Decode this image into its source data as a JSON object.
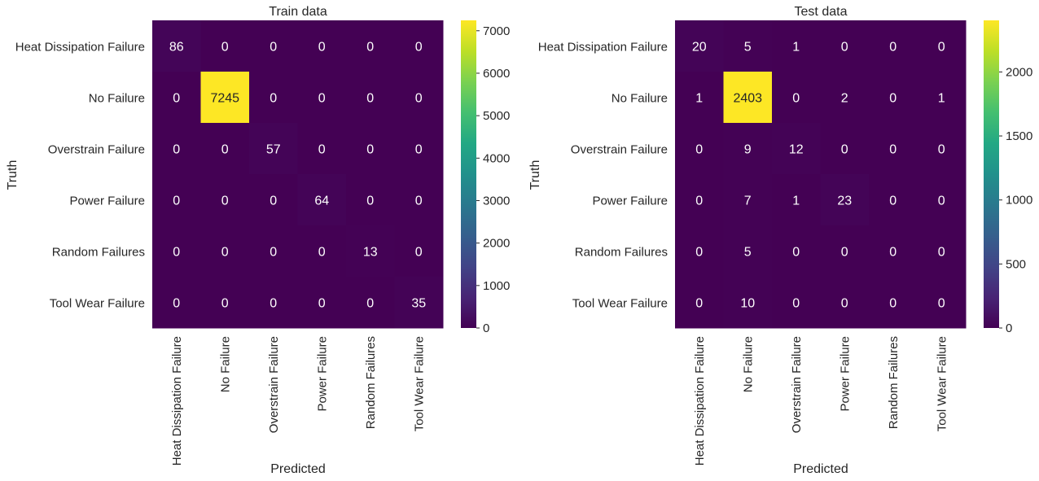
{
  "chart_data": [
    {
      "type": "heatmap",
      "title": "Train data",
      "xlabel": "Predicted",
      "ylabel": "Truth",
      "x_categories": [
        "Heat Dissipation Failure",
        "No Failure",
        "Overstrain Failure",
        "Power Failure",
        "Random Failures",
        "Tool Wear Failure"
      ],
      "y_categories": [
        "Heat Dissipation Failure",
        "No Failure",
        "Overstrain Failure",
        "Power Failure",
        "Random Failures",
        "Tool Wear Failure"
      ],
      "values": [
        [
          86,
          0,
          0,
          0,
          0,
          0
        ],
        [
          0,
          7245,
          0,
          0,
          0,
          0
        ],
        [
          0,
          0,
          57,
          0,
          0,
          0
        ],
        [
          0,
          0,
          0,
          64,
          0,
          0
        ],
        [
          0,
          0,
          0,
          0,
          13,
          0
        ],
        [
          0,
          0,
          0,
          0,
          0,
          35
        ]
      ],
      "colormap": "viridis",
      "vmin": 0,
      "vmax": 7245,
      "colorbar_ticks": [
        0,
        1000,
        2000,
        3000,
        4000,
        5000,
        6000,
        7000
      ]
    },
    {
      "type": "heatmap",
      "title": "Test data",
      "xlabel": "Predicted",
      "ylabel": "Truth",
      "x_categories": [
        "Heat Dissipation Failure",
        "No Failure",
        "Overstrain Failure",
        "Power Failure",
        "Random Failures",
        "Tool Wear Failure"
      ],
      "y_categories": [
        "Heat Dissipation Failure",
        "No Failure",
        "Overstrain Failure",
        "Power Failure",
        "Random Failures",
        "Tool Wear Failure"
      ],
      "values": [
        [
          20,
          5,
          1,
          0,
          0,
          0
        ],
        [
          1,
          2403,
          0,
          2,
          0,
          1
        ],
        [
          0,
          9,
          12,
          0,
          0,
          0
        ],
        [
          0,
          7,
          1,
          23,
          0,
          0
        ],
        [
          0,
          5,
          0,
          0,
          0,
          0
        ],
        [
          0,
          10,
          0,
          0,
          0,
          0
        ]
      ],
      "colormap": "viridis",
      "vmin": 0,
      "vmax": 2403,
      "colorbar_ticks": [
        0,
        500,
        1000,
        1500,
        2000
      ]
    }
  ]
}
